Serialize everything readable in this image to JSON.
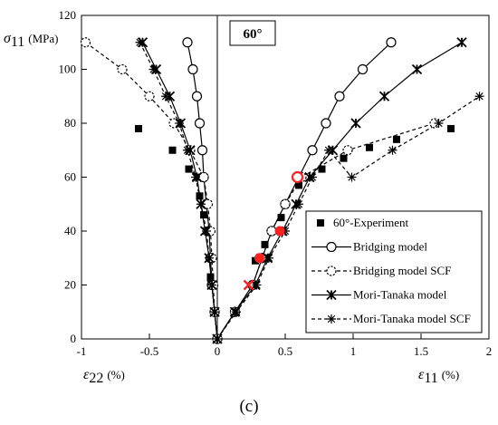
{
  "chart_data": {
    "type": "scatter",
    "title": "",
    "caption": "(c)",
    "annotation": "60°",
    "ylabel_symbol": "σ",
    "ylabel_sub": "11",
    "ylabel_unit": "(MPa)",
    "xlabel_left_symbol": "ε",
    "xlabel_left_sub": "22",
    "xlabel_left_unit": "(%)",
    "xlabel_right_symbol": "ε",
    "xlabel_right_sub": "11",
    "xlabel_right_unit": "(%)",
    "xlim": [
      -1,
      2
    ],
    "ylim": [
      0,
      120
    ],
    "x_ticks": [
      "-1",
      "-0.5",
      "0",
      "0.5",
      "1",
      "1.5",
      "2"
    ],
    "y_ticks": [
      "0",
      "20",
      "40",
      "60",
      "80",
      "100",
      "120"
    ],
    "legend_position": "lower-right",
    "series": [
      {
        "name": "60°-Experiment",
        "marker": "filled-square",
        "points": [
          [
            -0.58,
            78
          ],
          [
            -0.33,
            70
          ],
          [
            -0.21,
            63
          ],
          [
            -0.13,
            53
          ],
          [
            -0.1,
            46
          ],
          [
            -0.07,
            40
          ],
          [
            -0.05,
            23
          ],
          [
            0.28,
            29
          ],
          [
            0.35,
            35
          ],
          [
            0.47,
            45
          ],
          [
            0.6,
            57
          ],
          [
            0.77,
            63
          ],
          [
            0.93,
            67
          ],
          [
            1.12,
            71
          ],
          [
            1.32,
            74
          ],
          [
            1.72,
            78
          ]
        ]
      },
      {
        "name": "Bridging model",
        "marker": "open-circle",
        "line": "solid",
        "points": [
          [
            -0.22,
            110
          ],
          [
            -0.18,
            100
          ],
          [
            -0.15,
            90
          ],
          [
            -0.13,
            80
          ],
          [
            -0.11,
            70
          ],
          [
            -0.1,
            60
          ],
          [
            -0.08,
            50
          ],
          [
            -0.06,
            40
          ],
          [
            -0.05,
            30
          ],
          [
            -0.04,
            20
          ],
          [
            -0.02,
            10
          ],
          [
            0,
            0
          ],
          [
            0.13,
            10
          ],
          [
            0.26,
            20
          ],
          [
            0.33,
            30
          ],
          [
            0.4,
            40
          ],
          [
            0.5,
            50
          ],
          [
            0.6,
            60
          ],
          [
            0.7,
            70
          ],
          [
            0.8,
            80
          ],
          [
            0.9,
            90
          ],
          [
            1.07,
            100
          ],
          [
            1.28,
            110
          ]
        ]
      },
      {
        "name": "Bridging model SCF",
        "marker": "dashed-circle",
        "line": "dashed",
        "points": [
          [
            -0.97,
            110
          ],
          [
            -0.7,
            100
          ],
          [
            -0.5,
            90
          ],
          [
            -0.32,
            80
          ],
          [
            -0.2,
            70
          ],
          [
            -0.1,
            60
          ],
          [
            -0.07,
            50
          ],
          [
            -0.05,
            40
          ],
          [
            -0.04,
            30
          ],
          [
            -0.03,
            20
          ],
          [
            -0.02,
            10
          ],
          [
            0,
            0
          ],
          [
            0.13,
            10
          ],
          [
            0.26,
            20
          ],
          [
            0.33,
            30
          ],
          [
            0.4,
            40
          ],
          [
            0.5,
            50
          ],
          [
            0.62,
            60
          ],
          [
            0.96,
            70
          ],
          [
            1.6,
            80
          ]
        ]
      },
      {
        "name": "Mori-Tanaka model",
        "marker": "asterisk",
        "line": "solid",
        "points": [
          [
            -0.55,
            110
          ],
          [
            -0.45,
            100
          ],
          [
            -0.35,
            90
          ],
          [
            -0.27,
            80
          ],
          [
            -0.2,
            70
          ],
          [
            -0.15,
            60
          ],
          [
            -0.12,
            50
          ],
          [
            -0.09,
            40
          ],
          [
            -0.06,
            30
          ],
          [
            -0.04,
            20
          ],
          [
            -0.02,
            10
          ],
          [
            0,
            0
          ],
          [
            0.13,
            10
          ],
          [
            0.28,
            20
          ],
          [
            0.37,
            30
          ],
          [
            0.48,
            40
          ],
          [
            0.58,
            50
          ],
          [
            0.68,
            60
          ],
          [
            0.85,
            70
          ],
          [
            1.02,
            80
          ],
          [
            1.23,
            90
          ],
          [
            1.47,
            100
          ],
          [
            1.8,
            110
          ]
        ]
      },
      {
        "name": "Mori-Tanaka model SCF",
        "marker": "star",
        "line": "dashed",
        "points": [
          [
            -0.57,
            110
          ],
          [
            -0.47,
            100
          ],
          [
            -0.38,
            90
          ],
          [
            -0.28,
            80
          ],
          [
            -0.22,
            70
          ],
          [
            -0.16,
            60
          ],
          [
            -0.12,
            50
          ],
          [
            -0.08,
            40
          ],
          [
            -0.06,
            30
          ],
          [
            -0.04,
            20
          ],
          [
            -0.02,
            10
          ],
          [
            0,
            0
          ],
          [
            0.14,
            10
          ],
          [
            0.29,
            20
          ],
          [
            0.38,
            30
          ],
          [
            0.5,
            40
          ],
          [
            0.6,
            50
          ],
          [
            0.7,
            60
          ],
          [
            0.82,
            70
          ],
          [
            0.99,
            60
          ],
          [
            1.29,
            70
          ],
          [
            1.63,
            80
          ],
          [
            1.93,
            90
          ]
        ]
      }
    ],
    "highlight_points": [
      {
        "marker": "red-open-circle",
        "x": 0.59,
        "y": 60
      },
      {
        "marker": "red-filled-circle",
        "x": 0.46,
        "y": 40
      },
      {
        "marker": "red-filled-circle",
        "x": 0.31,
        "y": 30
      },
      {
        "marker": "red-cross",
        "x": 0.23,
        "y": 20
      }
    ],
    "colors": {
      "axis": "#000000",
      "highlight": "#ff2020"
    }
  }
}
